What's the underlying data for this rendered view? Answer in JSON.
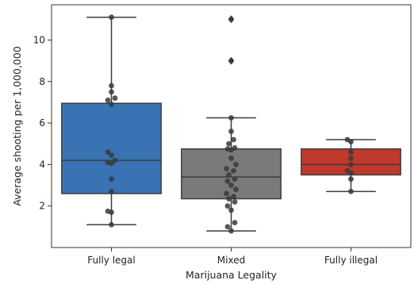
{
  "chart_data": {
    "type": "box",
    "xlabel": "Marijuana Legality",
    "ylabel": "Average shooting per 1,000,000",
    "ylim": [
      0.0,
      11.7
    ],
    "yticks": [
      2,
      4,
      6,
      8,
      10
    ],
    "grid": false,
    "legend": "none",
    "categories": [
      "Fully legal",
      "Mixed",
      "Fully illegal"
    ],
    "colors": [
      "#3a73b3",
      "#7a7a7a",
      "#c0392b"
    ],
    "boxes": [
      {
        "name": "Fully legal",
        "whisker_low": 1.1,
        "q1": 2.6,
        "median": 4.2,
        "q3": 6.95,
        "whisker_high": 11.1,
        "outliers": []
      },
      {
        "name": "Mixed",
        "whisker_low": 0.8,
        "q1": 2.35,
        "median": 3.4,
        "q3": 4.75,
        "whisker_high": 6.25,
        "outliers": [
          9.0,
          11.0
        ]
      },
      {
        "name": "Fully illegal",
        "whisker_low": 2.7,
        "q1": 3.5,
        "median": 4.0,
        "q3": 4.75,
        "whisker_high": 5.2,
        "outliers": []
      }
    ],
    "points": [
      [
        1.1,
        1.7,
        1.75,
        2.7,
        3.3,
        4.05,
        4.1,
        4.2,
        4.45,
        4.6,
        6.9,
        7.1,
        7.2,
        7.5,
        7.8,
        11.1
      ],
      [
        0.8,
        1.0,
        1.2,
        1.8,
        2.0,
        2.2,
        2.35,
        2.45,
        2.6,
        2.8,
        3.0,
        3.2,
        3.3,
        3.5,
        3.7,
        3.8,
        4.0,
        4.3,
        4.7,
        4.75,
        4.8,
        5.0,
        5.2,
        5.6,
        6.25,
        9.0,
        11.0
      ],
      [
        2.7,
        3.3,
        3.6,
        3.7,
        4.0,
        4.3,
        4.6,
        5.1,
        5.2
      ]
    ]
  }
}
